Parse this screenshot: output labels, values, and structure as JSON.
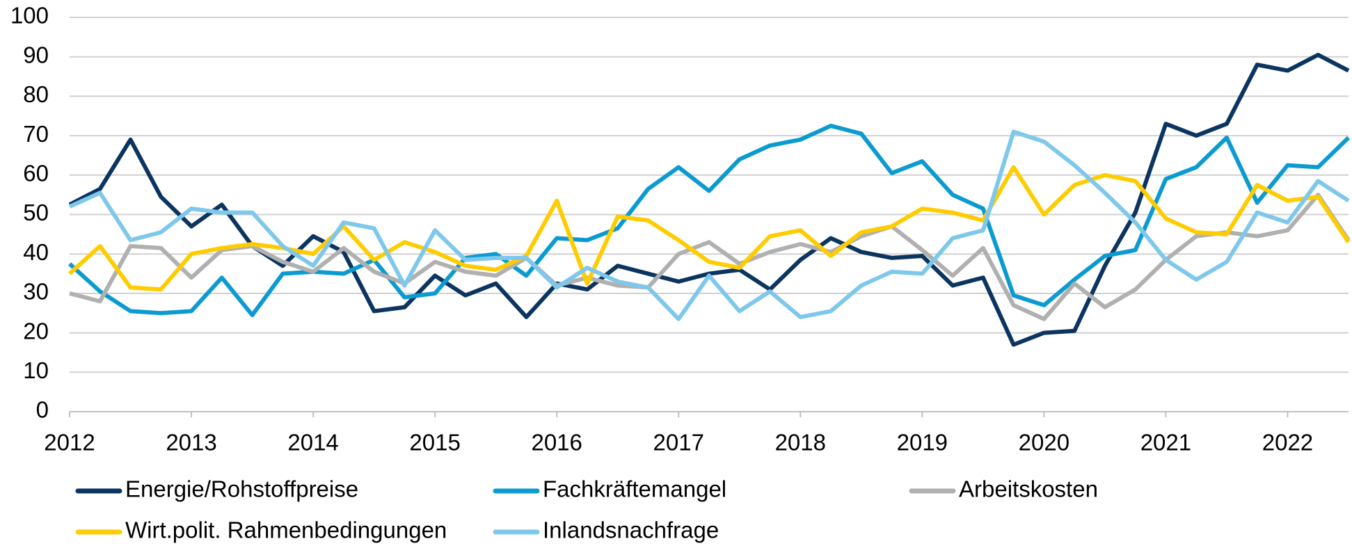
{
  "chart_data": {
    "type": "line",
    "x": [
      2012,
      2012.25,
      2012.5,
      2012.75,
      2013,
      2013.25,
      2013.5,
      2013.75,
      2014,
      2014.25,
      2014.5,
      2014.75,
      2015,
      2015.25,
      2015.5,
      2015.75,
      2016,
      2016.25,
      2016.5,
      2016.75,
      2017,
      2017.25,
      2017.5,
      2017.75,
      2018,
      2018.25,
      2018.5,
      2018.75,
      2019,
      2019.25,
      2019.5,
      2019.75,
      2020,
      2020.25,
      2020.5,
      2020.75,
      2021,
      2021.25,
      2021.5,
      2021.75,
      2022,
      2022.25,
      2022.5
    ],
    "series": [
      {
        "name": "Energie/Rohstoffpreise",
        "color": "#0b3560",
        "values": [
          52.5,
          56.5,
          69,
          54.5,
          47,
          52.5,
          42,
          37,
          44.5,
          40.5,
          25.5,
          26.5,
          34.5,
          29.5,
          32.5,
          24,
          32.5,
          31,
          37,
          35,
          33,
          35,
          36,
          31,
          38.5,
          44,
          40.5,
          39,
          39.5,
          32,
          34,
          17,
          20,
          20.5,
          37,
          50.5,
          73,
          70,
          73,
          88,
          86.5,
          90.5,
          86.5
        ]
      },
      {
        "name": "Fachkräftemangel",
        "color": "#0b9bd0",
        "values": [
          37.5,
          30.5,
          25.5,
          25,
          25.5,
          34,
          24.5,
          35,
          35.5,
          35,
          38.5,
          29,
          30,
          39,
          40,
          34.5,
          44,
          43.5,
          46.5,
          56.5,
          62,
          56,
          64,
          67.5,
          69,
          72.5,
          70.5,
          60.5,
          63.5,
          55,
          51.5,
          29.5,
          27,
          33.5,
          39.5,
          41,
          59,
          62,
          69.5,
          53,
          62.5,
          62,
          69.5
        ]
      },
      {
        "name": "Arbeitskosten",
        "color": "#b0b0b0",
        "values": [
          30,
          28,
          42,
          41.5,
          34,
          41,
          42,
          38,
          35.5,
          41.5,
          35.5,
          32.5,
          38,
          35.5,
          34.5,
          39,
          32,
          34,
          32,
          31.5,
          40,
          43,
          37.5,
          40.5,
          42.5,
          40.5,
          44.5,
          47,
          41,
          34.5,
          41.5,
          27,
          23.5,
          32.5,
          26.5,
          31,
          38.5,
          44.5,
          45.5,
          44.5,
          46,
          55,
          43.5
        ]
      },
      {
        "name": "Wirt.polit. Rahmenbedingungen",
        "color": "#ffcc00",
        "values": [
          35,
          42,
          31.5,
          31,
          40,
          41.5,
          42.5,
          41.5,
          40,
          47,
          38.5,
          43,
          40.5,
          37,
          36,
          39.5,
          53.5,
          32.5,
          49.5,
          48.5,
          43.5,
          38,
          36.5,
          44.5,
          46,
          39.5,
          45.5,
          47,
          51.5,
          50.5,
          48.5,
          62,
          50,
          57.5,
          60,
          58.5,
          49,
          45.5,
          45,
          57.5,
          53.5,
          54.5,
          43
        ]
      },
      {
        "name": "Inlandsnachfrage",
        "color": "#7ec8ec",
        "values": [
          52,
          55.5,
          43.5,
          45.5,
          51.5,
          50.5,
          50.5,
          42,
          37,
          48,
          46.5,
          32,
          46,
          38.5,
          39,
          39,
          31.5,
          36.5,
          33,
          31.5,
          23.5,
          34.5,
          25.5,
          30.5,
          24,
          25.5,
          32,
          35.5,
          35,
          44,
          46,
          71,
          68.5,
          62.5,
          55.5,
          48,
          38.5,
          33.5,
          38,
          50.5,
          48,
          58.5,
          53.5
        ]
      }
    ],
    "xlim": [
      2012,
      2022.5
    ],
    "xticks": [
      2012,
      2013,
      2014,
      2015,
      2016,
      2017,
      2018,
      2019,
      2020,
      2021,
      2022
    ],
    "ylim": [
      0,
      100
    ],
    "yticks": [
      0,
      10,
      20,
      30,
      40,
      50,
      60,
      70,
      80,
      90,
      100
    ],
    "grid": true
  }
}
